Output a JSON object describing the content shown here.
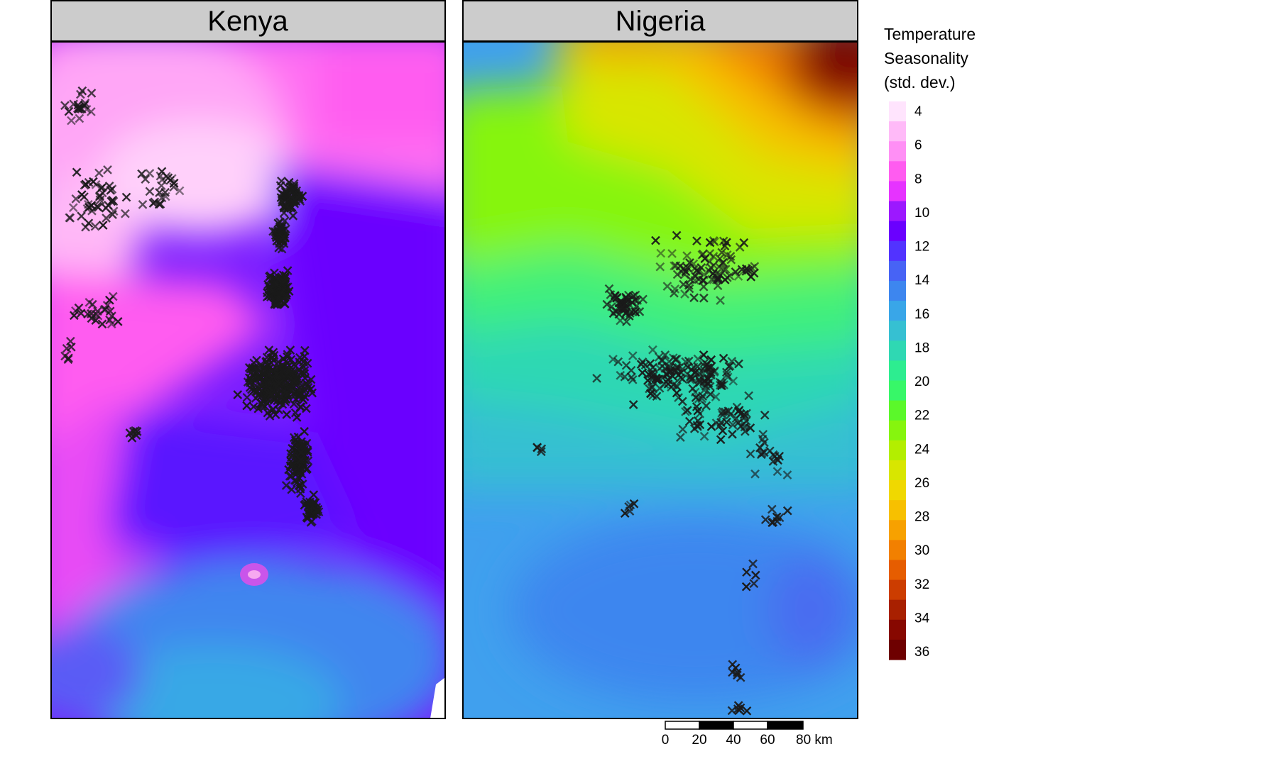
{
  "panels": [
    {
      "id": "kenya",
      "title": "Kenya"
    },
    {
      "id": "nigeria",
      "title": "Nigeria"
    }
  ],
  "legend": {
    "title_lines": [
      "Temperature",
      "Seasonality",
      "(std. dev.)"
    ],
    "labels": [
      "4",
      "6",
      "8",
      "10",
      "12",
      "14",
      "16",
      "18",
      "20",
      "22",
      "24",
      "26",
      "28",
      "30",
      "32",
      "34",
      "36"
    ],
    "colors": [
      "#ffe4fd",
      "#ffbaf8",
      "#ff8ff5",
      "#ff5cf0",
      "#e633ff",
      "#9c18ff",
      "#6a00ff",
      "#5233ff",
      "#4763f5",
      "#3d86ef",
      "#39a6e8",
      "#36c0d2",
      "#2fd8b3",
      "#2ded90",
      "#37f768",
      "#5bf82a",
      "#86f50e",
      "#b3ee00",
      "#d8e600",
      "#f0d800",
      "#f7c000",
      "#f7a100",
      "#f28000",
      "#e65d00",
      "#cc3d00",
      "#a82000",
      "#870800",
      "#6e0000"
    ]
  },
  "scale_bar": {
    "ticks": [
      "0",
      "20",
      "40",
      "60",
      "80 km"
    ]
  }
}
